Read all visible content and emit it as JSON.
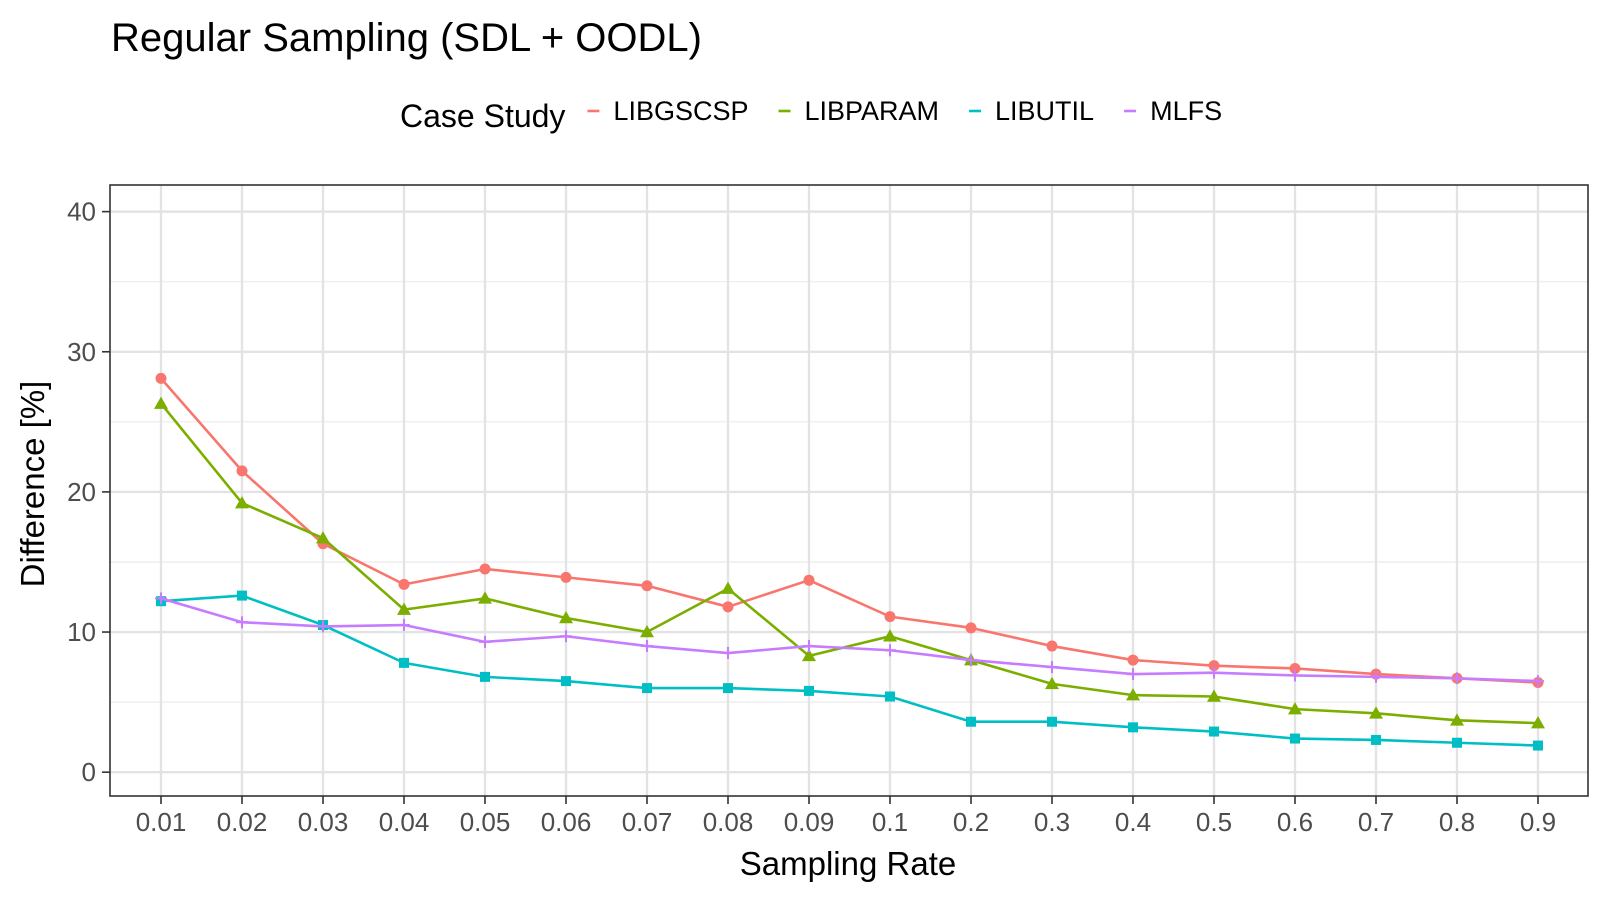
{
  "chart_data": {
    "type": "line",
    "title": "Regular Sampling (SDL + OODL)",
    "xlabel": "Sampling Rate",
    "ylabel": "Difference [%]",
    "legend_title": "Case Study",
    "legend_position": "top",
    "grid": true,
    "categories": [
      "0.01",
      "0.02",
      "0.03",
      "0.04",
      "0.05",
      "0.06",
      "0.07",
      "0.08",
      "0.09",
      "0.1",
      "0.2",
      "0.3",
      "0.4",
      "0.5",
      "0.6",
      "0.7",
      "0.8",
      "0.9"
    ],
    "ylim": [
      -1.7,
      41.9
    ],
    "yticks": [
      0,
      10,
      20,
      30,
      40
    ],
    "series": [
      {
        "name": "LIBGSCSP",
        "color": "#F8766D",
        "marker": "circle",
        "values": [
          28.1,
          21.5,
          16.3,
          13.4,
          14.5,
          13.9,
          13.3,
          11.8,
          13.7,
          11.1,
          10.3,
          9.0,
          8.0,
          7.6,
          7.4,
          7.0,
          6.7,
          6.4
        ]
      },
      {
        "name": "LIBPARAM",
        "color": "#7CAE00",
        "marker": "triangle",
        "values": [
          26.3,
          19.2,
          16.7,
          11.6,
          12.4,
          11.0,
          10.0,
          13.1,
          8.3,
          9.7,
          8.0,
          6.3,
          5.5,
          5.4,
          4.5,
          4.2,
          3.7,
          3.5
        ]
      },
      {
        "name": "LIBUTIL",
        "color": "#00BFC4",
        "marker": "square",
        "values": [
          12.2,
          12.6,
          10.5,
          7.8,
          6.8,
          6.5,
          6.0,
          6.0,
          5.8,
          5.4,
          3.6,
          3.6,
          3.2,
          2.9,
          2.4,
          2.3,
          2.1,
          1.9
        ]
      },
      {
        "name": "MLFS",
        "color": "#C77CFF",
        "marker": "cross",
        "values": [
          12.4,
          10.7,
          10.4,
          10.5,
          9.3,
          9.7,
          9.0,
          8.5,
          9.0,
          8.7,
          8.0,
          7.5,
          7.0,
          7.1,
          6.9,
          6.8,
          6.7,
          6.5
        ]
      }
    ]
  }
}
